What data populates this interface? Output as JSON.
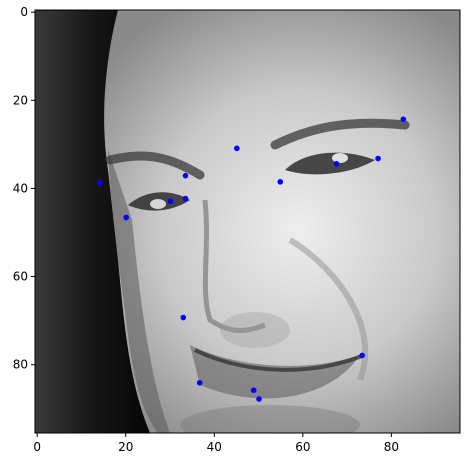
{
  "chart_data": {
    "type": "scatter",
    "title": "",
    "xlabel": "",
    "ylabel": "",
    "xlim": [
      -0.5,
      95.5
    ],
    "ylim": [
      95.5,
      -0.5
    ],
    "y_inverted": true,
    "grid": false,
    "background": "grayscale face image",
    "x_ticks": [
      0,
      20,
      40,
      60,
      80
    ],
    "y_ticks": [
      0,
      20,
      40,
      60,
      80
    ],
    "x_tick_labels": [
      "0",
      "20",
      "40",
      "60",
      "80"
    ],
    "y_tick_labels": [
      "0",
      "20",
      "40",
      "60",
      "80"
    ],
    "marker_color": "#0000ff",
    "series": [
      {
        "points": [
          {
            "x": 82.7,
            "y": 24.3
          },
          {
            "x": 77.0,
            "y": 33.2
          },
          {
            "x": 67.6,
            "y": 34.4
          },
          {
            "x": 54.9,
            "y": 38.5
          },
          {
            "x": 45.1,
            "y": 30.9
          },
          {
            "x": 33.5,
            "y": 37.1
          },
          {
            "x": 33.5,
            "y": 42.3
          },
          {
            "x": 30.1,
            "y": 42.9
          },
          {
            "x": 20.1,
            "y": 46.6
          },
          {
            "x": 14.1,
            "y": 38.7
          },
          {
            "x": 33.0,
            "y": 69.3
          },
          {
            "x": 36.7,
            "y": 84.1
          },
          {
            "x": 73.4,
            "y": 77.9
          },
          {
            "x": 48.9,
            "y": 85.8
          },
          {
            "x": 50.1,
            "y": 87.8
          }
        ]
      }
    ]
  }
}
